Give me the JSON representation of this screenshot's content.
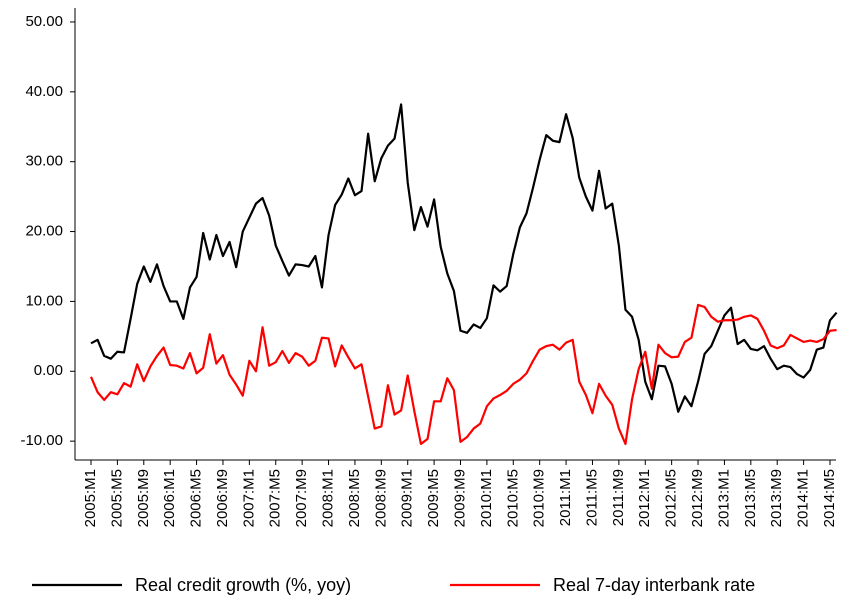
{
  "chart_data": {
    "type": "line",
    "categories": [
      "2005:M1",
      null,
      null,
      null,
      "2005:M5",
      null,
      null,
      null,
      "2005:M9",
      null,
      null,
      null,
      "2006:M1",
      null,
      null,
      null,
      "2006:M5",
      null,
      null,
      null,
      "2006:M9",
      null,
      null,
      null,
      "2007:M1",
      null,
      null,
      null,
      "2007:M5",
      null,
      null,
      null,
      "2007:M9",
      null,
      null,
      null,
      "2008:M1",
      null,
      null,
      null,
      "2008:M5",
      null,
      null,
      null,
      "2008:M9",
      null,
      null,
      null,
      "2009:M1",
      null,
      null,
      null,
      "2009:M5",
      null,
      null,
      null,
      "2009:M9",
      null,
      null,
      null,
      "2010:M1",
      null,
      null,
      null,
      "2010:M5",
      null,
      null,
      null,
      "2010:M9",
      null,
      null,
      null,
      "2011:M1",
      null,
      null,
      null,
      "2011:M5",
      null,
      null,
      null,
      "2011:M9",
      null,
      null,
      null,
      "2012:M1",
      null,
      null,
      null,
      "2012:M5",
      null,
      null,
      null,
      "2012:M9",
      null,
      null,
      null,
      "2013:M1",
      null,
      null,
      null,
      "2013:M5",
      null,
      null,
      null,
      "2013:M9",
      null,
      null,
      null,
      "2014:M1",
      null,
      null,
      null,
      "2014:M5",
      null
    ],
    "series": [
      {
        "name": "Real credit growth (%, yoy)",
        "color": "#000000",
        "values": [
          4.0,
          4.5,
          2.2,
          1.8,
          2.8,
          2.7,
          7.5,
          12.5,
          15,
          12.8,
          15.3,
          12.2,
          10,
          10,
          7.5,
          12,
          13.5,
          19.8,
          16,
          19.5,
          16.5,
          18.5,
          14.9,
          20,
          22,
          24,
          24.8,
          22.3,
          18,
          15.8,
          13.7,
          15.3,
          15.2,
          15,
          16.5,
          12,
          19.5,
          23.8,
          25.3,
          27.6,
          25.2,
          25.8,
          34,
          27.2,
          30.5,
          32.3,
          33.3,
          38.2,
          27,
          20.2,
          23.5,
          20.7,
          24.6,
          17.8,
          14,
          11.5,
          5.8,
          5.5,
          6.7,
          6.2,
          7.6,
          12.3,
          11.4,
          12.2,
          16.8,
          20.6,
          22.6,
          26.3,
          30.3,
          33.8,
          33,
          32.8,
          36.8,
          33.4,
          27.7,
          25,
          23,
          28.7,
          23.3,
          24,
          18,
          8.8,
          7.8,
          4.5,
          -1.5,
          -4,
          0.8,
          0.7,
          -1.8,
          -5.8,
          -3.6,
          -5,
          -1.5,
          2.5,
          3.6,
          5.8,
          8,
          9.1,
          3.9,
          4.5,
          3.2,
          3,
          3.6,
          1.8,
          0.3,
          0.8,
          0.6,
          -0.4,
          -0.9,
          0.2,
          3.1,
          3.4,
          7.3,
          8.4
        ]
      },
      {
        "name": "Real 7-day interbank rate",
        "color": "#ff0000",
        "values": [
          -0.8,
          -3,
          -4.1,
          -3,
          -3.3,
          -1.7,
          -2.2,
          1,
          -1.4,
          0.7,
          2.2,
          3.4,
          0.9,
          0.8,
          0.4,
          2.6,
          -0.3,
          0.5,
          5.3,
          1.1,
          2.3,
          -0.5,
          -1.9,
          -3.5,
          1.5,
          0,
          6.3,
          0.8,
          1.3,
          2.9,
          1.2,
          2.6,
          2.1,
          0.8,
          1.5,
          4.8,
          4.7,
          0.7,
          3.7,
          2,
          0.4,
          1,
          -3.6,
          -8.2,
          -7.9,
          -2,
          -6.2,
          -5.6,
          -0.6,
          -5.7,
          -10.4,
          -9.7,
          -4.3,
          -4.3,
          -1,
          -2.7,
          -10.1,
          -9.4,
          -8.2,
          -7.5,
          -5,
          -3.9,
          -3.4,
          -2.8,
          -1.8,
          -1.2,
          -0.3,
          1.5,
          3.1,
          3.6,
          3.8,
          3.1,
          4.1,
          4.5,
          -1.5,
          -3.4,
          -6,
          -1.8,
          -3.5,
          -4.8,
          -8.2,
          -10.4,
          -4,
          0.3,
          2.8,
          -2.5,
          3.8,
          2.6,
          2,
          2.1,
          4.2,
          4.8,
          9.5,
          9.2,
          7.8,
          7.1,
          7.3,
          7.3,
          7.4,
          7.8,
          8,
          7.5,
          5.8,
          3.7,
          3.3,
          3.7,
          5.2,
          4.7,
          4.2,
          4.4,
          4.2,
          4.6,
          5.8,
          5.9
        ]
      }
    ],
    "ylim": [
      -12.7,
      52
    ],
    "yticks": [
      {
        "value": -10,
        "label": "-10.00"
      },
      {
        "value": 0,
        "label": "0.00"
      },
      {
        "value": 10,
        "label": "10.00"
      },
      {
        "value": 20,
        "label": "20.00"
      },
      {
        "value": 30,
        "label": "30.00"
      },
      {
        "value": 40,
        "label": "40.00"
      },
      {
        "value": 50,
        "label": "50.00"
      }
    ],
    "legend": "bottom"
  }
}
